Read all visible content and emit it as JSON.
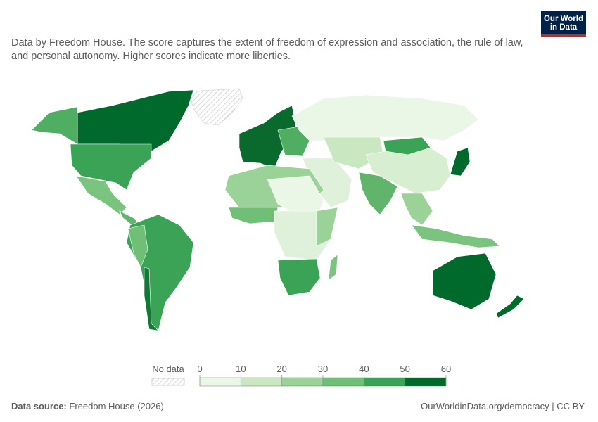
{
  "header": {
    "logo": [
      "Our World",
      "in Data"
    ],
    "subtitle": "Data by Freedom House. The score captures the extent of freedom of expression and association, the rule of law, and personal autonomy. Higher scores indicate more liberties."
  },
  "legend": {
    "no_data_label": "No data",
    "ticks": [
      0,
      10,
      20,
      30,
      40,
      50,
      60
    ],
    "colors": [
      "#eaf6e6",
      "#c9e8c2",
      "#9ad297",
      "#6fbf76",
      "#3aa356",
      "#00692c"
    ]
  },
  "footer": {
    "source_label": "Data source:",
    "source": "Freedom House (2026)",
    "link": "OurWorldinData.org/democracy | CC BY"
  }
}
